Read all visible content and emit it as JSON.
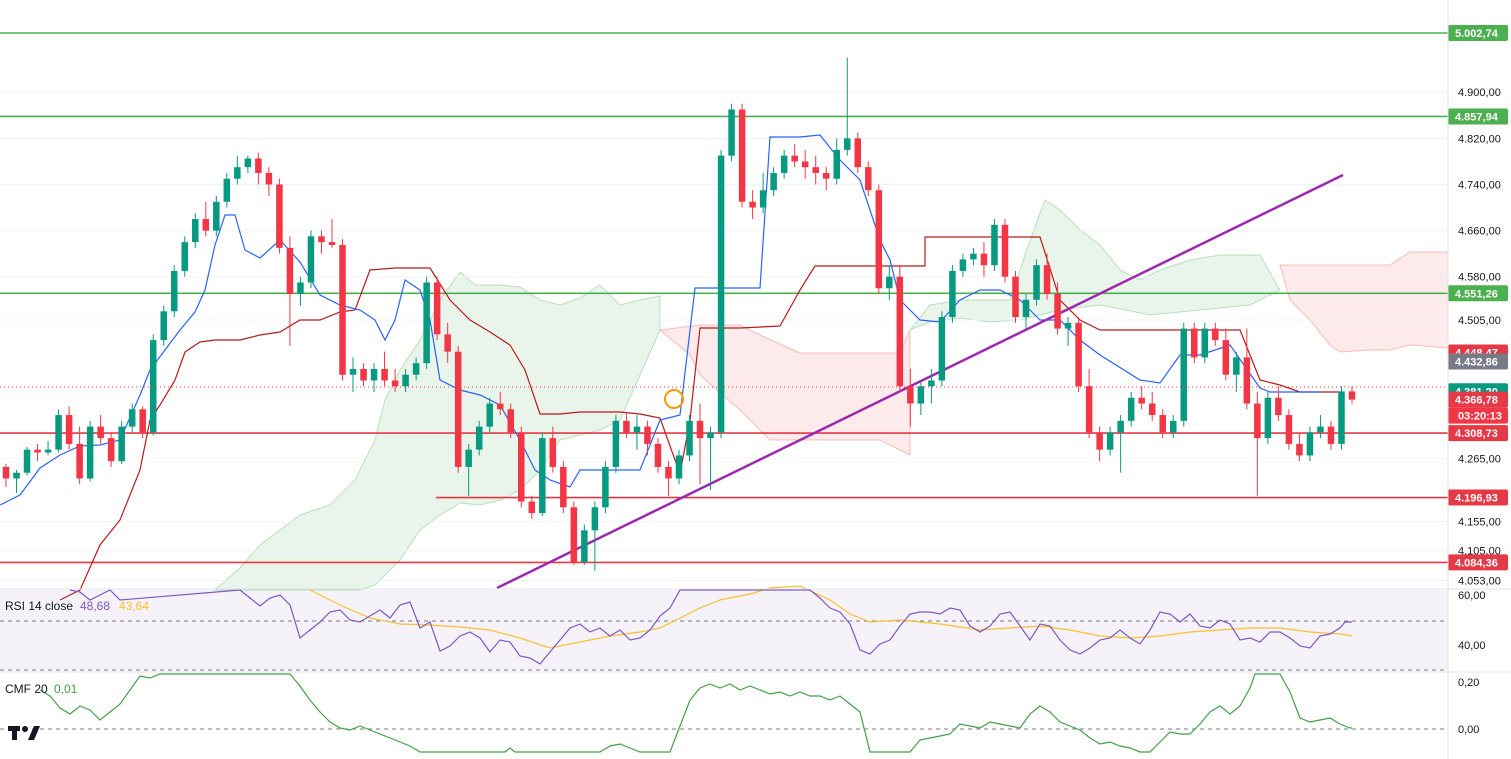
{
  "chart_data": {
    "type": "candlestick",
    "price_axis": {
      "ticks": [
        "4.900,00",
        "4.820,00",
        "4.740,00",
        "4.660,00",
        "4.580,00",
        "4.505,00",
        "4.265,00",
        "4.155,00",
        "4.105,00",
        "4.053,00"
      ],
      "ylim": [
        4040,
        5060
      ]
    },
    "horizontal_levels": [
      {
        "value": 5002.74,
        "label": "5.002,74",
        "color": "#4caf50"
      },
      {
        "value": 4857.94,
        "label": "4.857,94",
        "color": "#4caf50"
      },
      {
        "value": 4551.26,
        "label": "4.551,26",
        "color": "#4caf50"
      },
      {
        "value": 4308.73,
        "label": "4.308,73",
        "color": "#e53945"
      },
      {
        "value": 4196.93,
        "label": "4.196,93",
        "color": "#e53945"
      },
      {
        "value": 4084.36,
        "label": "4.084,36",
        "color": "#e53945"
      }
    ],
    "price_labels": [
      {
        "value": 4448.47,
        "label": "4.448,47",
        "color": "#e53945"
      },
      {
        "value": 4432.86,
        "label": "4.432,86",
        "color": "#787b86"
      },
      {
        "value": 4381.2,
        "label": "4.381,20",
        "color": "#089981"
      },
      {
        "value": 4366.78,
        "label": "4.366,78",
        "color": "#e53945"
      }
    ],
    "countdown": "03:20:13",
    "candles": [
      [
        4250,
        4255,
        4215,
        4230
      ],
      [
        4230,
        4245,
        4205,
        4240
      ],
      [
        4240,
        4285,
        4235,
        4280
      ],
      [
        4280,
        4290,
        4260,
        4275
      ],
      [
        4275,
        4295,
        4270,
        4280
      ],
      [
        4280,
        4350,
        4275,
        4340
      ],
      [
        4340,
        4355,
        4280,
        4290
      ],
      [
        4290,
        4320,
        4220,
        4230
      ],
      [
        4230,
        4330,
        4225,
        4320
      ],
      [
        4320,
        4340,
        4290,
        4300
      ],
      [
        4300,
        4310,
        4250,
        4260
      ],
      [
        4260,
        4330,
        4255,
        4320
      ],
      [
        4320,
        4360,
        4310,
        4350
      ],
      [
        4350,
        4355,
        4300,
        4310
      ],
      [
        4310,
        4480,
        4305,
        4470
      ],
      [
        4470,
        4530,
        4460,
        4520
      ],
      [
        4520,
        4600,
        4510,
        4590
      ],
      [
        4590,
        4650,
        4580,
        4640
      ],
      [
        4640,
        4690,
        4630,
        4680
      ],
      [
        4680,
        4710,
        4650,
        4660
      ],
      [
        4660,
        4720,
        4650,
        4710
      ],
      [
        4710,
        4760,
        4700,
        4750
      ],
      [
        4750,
        4790,
        4740,
        4770
      ],
      [
        4770,
        4790,
        4760,
        4785
      ],
      [
        4785,
        4795,
        4740,
        4760
      ],
      [
        4760,
        4770,
        4720,
        4740
      ],
      [
        4740,
        4750,
        4620,
        4630
      ],
      [
        4630,
        4650,
        4460,
        4550
      ],
      [
        4550,
        4580,
        4530,
        4570
      ],
      [
        4570,
        4660,
        4560,
        4650
      ],
      [
        4650,
        4660,
        4620,
        4640
      ],
      [
        4640,
        4680,
        4630,
        4635
      ],
      [
        4635,
        4645,
        4400,
        4410
      ],
      [
        4410,
        4440,
        4380,
        4420
      ],
      [
        4420,
        4430,
        4390,
        4400
      ],
      [
        4400,
        4430,
        4380,
        4420
      ],
      [
        4420,
        4450,
        4390,
        4400
      ],
      [
        4400,
        4420,
        4380,
        4390
      ],
      [
        4390,
        4420,
        4380,
        4410
      ],
      [
        4410,
        4440,
        4400,
        4430
      ],
      [
        4430,
        4580,
        4420,
        4570
      ],
      [
        4570,
        4580,
        4470,
        4480
      ],
      [
        4480,
        4500,
        4430,
        4450
      ],
      [
        4450,
        4460,
        4240,
        4250
      ],
      [
        4250,
        4290,
        4200,
        4280
      ],
      [
        4280,
        4330,
        4270,
        4320
      ],
      [
        4320,
        4370,
        4310,
        4360
      ],
      [
        4360,
        4380,
        4340,
        4350
      ],
      [
        4350,
        4360,
        4300,
        4310
      ],
      [
        4310,
        4320,
        4180,
        4190
      ],
      [
        4190,
        4200,
        4160,
        4170
      ],
      [
        4170,
        4310,
        4165,
        4300
      ],
      [
        4300,
        4320,
        4240,
        4250
      ],
      [
        4250,
        4260,
        4170,
        4180
      ],
      [
        4180,
        4190,
        4080,
        4085
      ],
      [
        4085,
        4150,
        4080,
        4140
      ],
      [
        4140,
        4190,
        4070,
        4180
      ],
      [
        4180,
        4260,
        4170,
        4250
      ],
      [
        4250,
        4340,
        4240,
        4330
      ],
      [
        4330,
        4345,
        4300,
        4310
      ],
      [
        4310,
        4340,
        4280,
        4320
      ],
      [
        4320,
        4330,
        4270,
        4290
      ],
      [
        4290,
        4300,
        4240,
        4250
      ],
      [
        4250,
        4260,
        4200,
        4230
      ],
      [
        4230,
        4280,
        4220,
        4270
      ],
      [
        4270,
        4340,
        4260,
        4330
      ],
      [
        4330,
        4360,
        4220,
        4300
      ],
      [
        4300,
        4320,
        4210,
        4310
      ],
      [
        4310,
        4800,
        4300,
        4790
      ],
      [
        4790,
        4880,
        4780,
        4870
      ],
      [
        4870,
        4880,
        4700,
        4710
      ],
      [
        4710,
        4730,
        4680,
        4700
      ],
      [
        4700,
        4760,
        4690,
        4730
      ],
      [
        4730,
        4770,
        4720,
        4760
      ],
      [
        4760,
        4800,
        4750,
        4790
      ],
      [
        4790,
        4810,
        4770,
        4780
      ],
      [
        4780,
        4800,
        4750,
        4770
      ],
      [
        4770,
        4790,
        4740,
        4760
      ],
      [
        4760,
        4770,
        4730,
        4750
      ],
      [
        4750,
        4820,
        4740,
        4800
      ],
      [
        4800,
        4960,
        4790,
        4820
      ],
      [
        4820,
        4830,
        4760,
        4770
      ],
      [
        4770,
        4780,
        4720,
        4730
      ],
      [
        4730,
        4740,
        4550,
        4560
      ],
      [
        4560,
        4600,
        4540,
        4580
      ],
      [
        4580,
        4600,
        4380,
        4390
      ],
      [
        4390,
        4420,
        4320,
        4360
      ],
      [
        4360,
        4400,
        4340,
        4390
      ],
      [
        4390,
        4420,
        4360,
        4400
      ],
      [
        4400,
        4520,
        4390,
        4510
      ],
      [
        4510,
        4600,
        4500,
        4590
      ],
      [
        4590,
        4620,
        4580,
        4610
      ],
      [
        4610,
        4630,
        4600,
        4620
      ],
      [
        4620,
        4640,
        4580,
        4600
      ],
      [
        4600,
        4680,
        4590,
        4670
      ],
      [
        4670,
        4680,
        4570,
        4580
      ],
      [
        4580,
        4590,
        4500,
        4510
      ],
      [
        4510,
        4550,
        4490,
        4540
      ],
      [
        4540,
        4610,
        4530,
        4600
      ],
      [
        4600,
        4620,
        4540,
        4550
      ],
      [
        4550,
        4570,
        4480,
        4490
      ],
      [
        4490,
        4510,
        4460,
        4500
      ],
      [
        4500,
        4510,
        4380,
        4390
      ],
      [
        4390,
        4420,
        4300,
        4310
      ],
      [
        4310,
        4320,
        4260,
        4280
      ],
      [
        4280,
        4320,
        4270,
        4310
      ],
      [
        4310,
        4340,
        4240,
        4330
      ],
      [
        4330,
        4380,
        4320,
        4370
      ],
      [
        4370,
        4390,
        4350,
        4360
      ],
      [
        4360,
        4380,
        4330,
        4340
      ],
      [
        4340,
        4350,
        4300,
        4310
      ],
      [
        4310,
        4340,
        4300,
        4330
      ],
      [
        4330,
        4500,
        4320,
        4490
      ],
      [
        4490,
        4500,
        4430,
        4440
      ],
      [
        4440,
        4500,
        4430,
        4490
      ],
      [
        4490,
        4500,
        4460,
        4470
      ],
      [
        4470,
        4490,
        4400,
        4410
      ],
      [
        4410,
        4450,
        4380,
        4440
      ],
      [
        4440,
        4490,
        4350,
        4360
      ],
      [
        4360,
        4380,
        4200,
        4300
      ],
      [
        4300,
        4380,
        4290,
        4370
      ],
      [
        4370,
        4390,
        4330,
        4340
      ],
      [
        4340,
        4350,
        4280,
        4290
      ],
      [
        4290,
        4310,
        4260,
        4270
      ],
      [
        4270,
        4320,
        4260,
        4310
      ],
      [
        4310,
        4340,
        4300,
        4320
      ],
      [
        4320,
        4330,
        4280,
        4290
      ],
      [
        4290,
        4390,
        4280,
        4381
      ],
      [
        4381,
        4390,
        4360,
        4366.78
      ]
    ],
    "rsi": {
      "label": "RSI 14 close",
      "value": "48,68",
      "ma_value": "43,64",
      "axis_ticks": [
        "60,00",
        "40,00"
      ],
      "color": "#7e57c2",
      "ma_color": "#fbc02d"
    },
    "cmf": {
      "label": "CMF 20",
      "value": "0,01",
      "axis_ticks": [
        "0,20",
        "0,00"
      ],
      "color": "#43a047"
    }
  }
}
